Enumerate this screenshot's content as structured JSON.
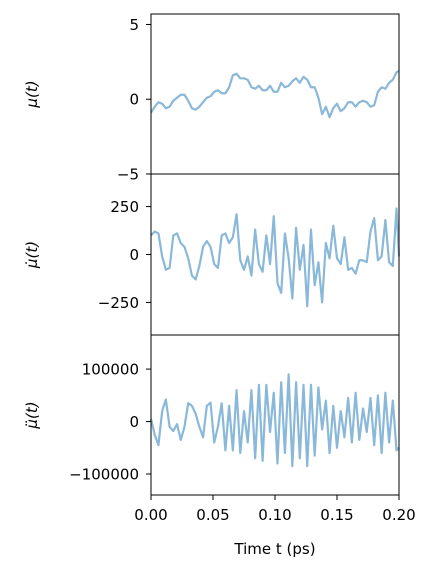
{
  "chart_data": [
    {
      "type": "line",
      "ylabel_html": "μ(t)",
      "ylim": [
        -5,
        5.7
      ],
      "yticks": [
        5,
        0,
        -5
      ],
      "ytick_labels": [
        "5",
        "0",
        "−5"
      ],
      "series": [
        {
          "color": "#8ab8d9",
          "x": [
            0.0,
            0.003,
            0.006,
            0.009,
            0.012,
            0.015,
            0.018,
            0.021,
            0.024,
            0.027,
            0.03,
            0.033,
            0.036,
            0.039,
            0.042,
            0.045,
            0.048,
            0.051,
            0.054,
            0.057,
            0.06,
            0.063,
            0.066,
            0.069,
            0.072,
            0.075,
            0.078,
            0.081,
            0.084,
            0.087,
            0.09,
            0.093,
            0.096,
            0.099,
            0.102,
            0.105,
            0.108,
            0.111,
            0.114,
            0.117,
            0.12,
            0.123,
            0.126,
            0.129,
            0.132,
            0.135,
            0.138,
            0.141,
            0.144,
            0.147,
            0.15,
            0.153,
            0.156,
            0.159,
            0.162,
            0.165,
            0.168,
            0.171,
            0.174,
            0.177,
            0.18,
            0.183,
            0.186,
            0.189,
            0.192,
            0.195,
            0.198,
            0.2
          ],
          "y": [
            -0.9,
            -0.5,
            -0.2,
            -0.3,
            -0.6,
            -0.5,
            -0.1,
            0.1,
            0.3,
            0.3,
            -0.1,
            -0.6,
            -0.7,
            -0.5,
            -0.2,
            0.1,
            0.2,
            0.5,
            0.6,
            0.4,
            0.4,
            0.8,
            1.6,
            1.7,
            1.4,
            1.4,
            1.3,
            0.8,
            0.7,
            0.9,
            0.6,
            0.6,
            0.9,
            0.5,
            0.5,
            1.1,
            0.8,
            0.9,
            1.2,
            1.4,
            1.1,
            1.5,
            1.3,
            0.8,
            0.8,
            0.1,
            -1.0,
            -0.5,
            -1.2,
            -0.6,
            -0.3,
            -0.8,
            -0.6,
            -0.2,
            -0.2,
            -0.5,
            -0.2,
            -0.1,
            -0.2,
            -0.5,
            -0.4,
            0.5,
            0.8,
            0.7,
            1.1,
            1.3,
            1.8,
            1.9
          ]
        }
      ]
    },
    {
      "type": "line",
      "ylabel_html": "μ̇(t)",
      "ylim": [
        -420,
        420
      ],
      "yticks": [
        250,
        0,
        -250
      ],
      "ytick_labels": [
        "250",
        "0",
        "−250"
      ],
      "series": [
        {
          "color": "#8ab8d9",
          "x": [
            0.0,
            0.003,
            0.006,
            0.009,
            0.012,
            0.015,
            0.018,
            0.021,
            0.024,
            0.027,
            0.03,
            0.033,
            0.036,
            0.039,
            0.042,
            0.045,
            0.048,
            0.051,
            0.054,
            0.057,
            0.06,
            0.063,
            0.066,
            0.069,
            0.072,
            0.075,
            0.078,
            0.081,
            0.084,
            0.087,
            0.09,
            0.093,
            0.096,
            0.099,
            0.102,
            0.105,
            0.108,
            0.111,
            0.114,
            0.117,
            0.12,
            0.123,
            0.126,
            0.129,
            0.132,
            0.135,
            0.138,
            0.141,
            0.144,
            0.147,
            0.15,
            0.153,
            0.156,
            0.159,
            0.162,
            0.165,
            0.168,
            0.171,
            0.174,
            0.177,
            0.18,
            0.183,
            0.186,
            0.189,
            0.192,
            0.195,
            0.198,
            0.2
          ],
          "y": [
            100,
            120,
            110,
            -10,
            -80,
            -70,
            100,
            110,
            60,
            40,
            -20,
            -110,
            -130,
            -60,
            40,
            70,
            40,
            -50,
            -70,
            100,
            110,
            60,
            90,
            210,
            -30,
            -80,
            -10,
            -110,
            130,
            -50,
            -90,
            100,
            -50,
            200,
            -150,
            -200,
            110,
            -20,
            -230,
            140,
            -80,
            50,
            -270,
            130,
            -160,
            -40,
            -250,
            60,
            -20,
            150,
            -20,
            -50,
            90,
            -80,
            -70,
            -100,
            -30,
            -30,
            -40,
            120,
            190,
            -30,
            -10,
            180,
            -40,
            -60,
            240,
            -10
          ]
        }
      ]
    },
    {
      "type": "line",
      "ylabel_html": "μ̈(t)",
      "ylim": [
        -140000,
        165000
      ],
      "yticks": [
        100000,
        0,
        -100000
      ],
      "ytick_labels": [
        "100000",
        "0",
        "−100000"
      ],
      "series": [
        {
          "color": "#8ab8d9",
          "x": [
            0.0,
            0.003,
            0.006,
            0.009,
            0.012,
            0.015,
            0.018,
            0.021,
            0.024,
            0.027,
            0.03,
            0.033,
            0.036,
            0.039,
            0.042,
            0.045,
            0.048,
            0.051,
            0.054,
            0.057,
            0.06,
            0.063,
            0.066,
            0.069,
            0.072,
            0.075,
            0.078,
            0.081,
            0.084,
            0.087,
            0.09,
            0.093,
            0.096,
            0.099,
            0.102,
            0.105,
            0.108,
            0.111,
            0.114,
            0.117,
            0.12,
            0.123,
            0.126,
            0.129,
            0.132,
            0.135,
            0.138,
            0.141,
            0.144,
            0.147,
            0.15,
            0.153,
            0.156,
            0.159,
            0.162,
            0.165,
            0.168,
            0.171,
            0.174,
            0.177,
            0.18,
            0.183,
            0.186,
            0.189,
            0.192,
            0.195,
            0.198,
            0.2
          ],
          "y": [
            5000,
            -25000,
            -45000,
            20000,
            42000,
            -10000,
            -18000,
            -5000,
            -35000,
            -10000,
            35000,
            30000,
            15000,
            -10000,
            -30000,
            30000,
            36000,
            -40000,
            -10000,
            35000,
            -55000,
            30000,
            -55000,
            60000,
            -60000,
            20000,
            -40000,
            60000,
            -70000,
            70000,
            -75000,
            70000,
            -20000,
            55000,
            -80000,
            75000,
            -60000,
            90000,
            -85000,
            75000,
            -70000,
            70000,
            -85000,
            70000,
            -65000,
            65000,
            -15000,
            40000,
            -60000,
            30000,
            -50000,
            20000,
            -30000,
            45000,
            -40000,
            55000,
            -35000,
            25000,
            -20000,
            45000,
            -45000,
            50000,
            -60000,
            55000,
            -40000,
            40000,
            -55000,
            -50000
          ]
        }
      ]
    }
  ],
  "shared_x": {
    "xlabel_html": "Time t (ps)",
    "xlim": [
      0.0,
      0.2
    ],
    "xticks": [
      0.0,
      0.05,
      0.1,
      0.15,
      0.2
    ],
    "xtick_labels": [
      "0.00",
      "0.05",
      "0.10",
      "0.15",
      "0.20"
    ]
  }
}
